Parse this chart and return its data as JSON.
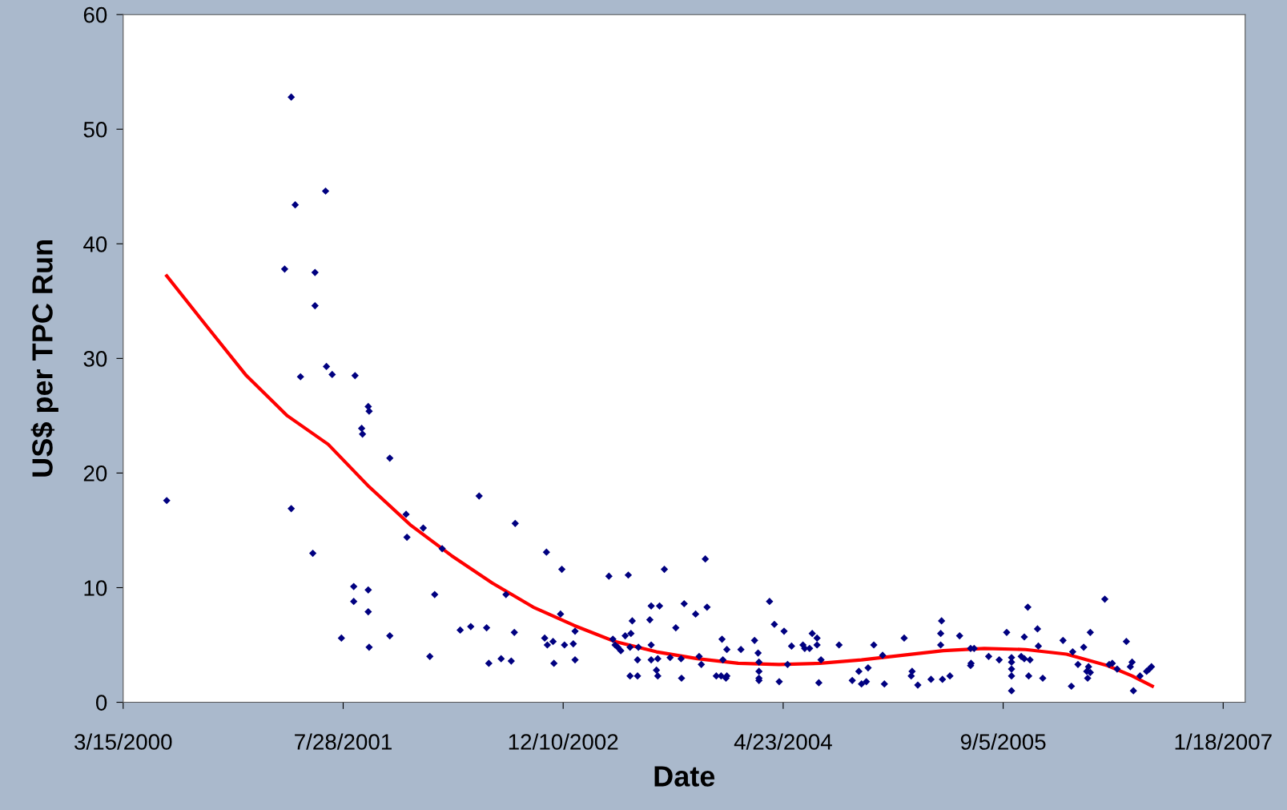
{
  "chart_data": {
    "type": "scatter",
    "xlabel": "Date",
    "ylabel": "US$ per TPC Run",
    "xlim": [
      "2000-03-15",
      "2007-03-09"
    ],
    "ylim": [
      0,
      60
    ],
    "yticks": [
      0,
      10,
      20,
      30,
      40,
      50,
      60
    ],
    "xticks": [
      {
        "value": "2000-03-15",
        "label": "3/15/2000"
      },
      {
        "value": "2001-07-28",
        "label": "7/28/2001"
      },
      {
        "value": "2002-12-10",
        "label": "12/10/2002"
      },
      {
        "value": "2004-04-23",
        "label": "4/23/2004"
      },
      {
        "value": "2005-09-05",
        "label": "9/5/2005"
      },
      {
        "value": "2007-01-18",
        "label": "1/18/2007"
      }
    ],
    "grid": false,
    "legend": false,
    "series": [
      {
        "color": "#000080",
        "marker": "diamond",
        "x": [
          "2000-06-22",
          "2001-04-01",
          "2001-04-10",
          "2001-03-17",
          "2001-05-25",
          "2001-05-25",
          "2001-04-22",
          "2001-04-01",
          "2001-05-20",
          "2001-06-18",
          "2001-06-20",
          "2001-07-03",
          "2001-08-24",
          "2001-09-08",
          "2001-09-10",
          "2001-09-23",
          "2001-09-25",
          "2001-11-11",
          "2001-07-24",
          "2001-08-21",
          "2001-08-21",
          "2001-09-23",
          "2001-09-23",
          "2001-09-25",
          "2001-11-11",
          "2001-12-18",
          "2001-12-20",
          "2002-01-26",
          "2002-02-10",
          "2002-02-21",
          "2002-03-10",
          "2002-04-20",
          "2002-05-14",
          "2002-06-02",
          "2002-06-19",
          "2002-06-24",
          "2002-07-22",
          "2002-08-02",
          "2002-08-14",
          "2002-08-23",
          "2002-08-21",
          "2002-11-02",
          "2002-10-29",
          "2002-11-04",
          "2002-11-17",
          "2002-11-19",
          "2002-12-07",
          "2002-12-04",
          "2002-12-13",
          "2003-01-02",
          "2003-01-06",
          "2003-01-06",
          "2003-03-24",
          "2003-04-02",
          "2003-04-07",
          "2003-04-13",
          "2003-04-20",
          "2003-04-30",
          "2003-05-07",
          "2003-05-11",
          "2003-05-28",
          "2003-05-16",
          "2003-05-13",
          "2003-05-11",
          "2003-05-28",
          "2003-05-30",
          "2003-06-25",
          "2003-06-28",
          "2003-07-17",
          "2003-06-28",
          "2003-06-28",
          "2003-07-10",
          "2003-07-13",
          "2003-07-13",
          "2003-07-28",
          "2003-08-10",
          "2003-08-23",
          "2003-09-04",
          "2003-09-05",
          "2003-09-11",
          "2003-10-07",
          "2003-10-15",
          "2003-10-20",
          "2003-10-29",
          "2003-11-02",
          "2003-11-23",
          "2003-12-04",
          "2003-12-15",
          "2003-12-17",
          "2003-12-06",
          "2003-12-08",
          "2003-12-17",
          "2004-01-18",
          "2004-02-18",
          "2004-02-26",
          "2004-02-28",
          "2004-02-28",
          "2004-02-28",
          "2004-02-28",
          "2004-03-23",
          "2004-04-03",
          "2004-04-14",
          "2004-04-25",
          "2004-05-03",
          "2004-05-12",
          "2004-06-07",
          "2004-06-11",
          "2004-06-22",
          "2004-06-28",
          "2004-07-09",
          "2004-07-09",
          "2004-07-13",
          "2004-07-18",
          "2004-08-28",
          "2004-09-27",
          "2004-10-12",
          "2004-10-18",
          "2004-10-29",
          "2004-11-02",
          "2004-11-15",
          "2004-12-05",
          "2004-12-09",
          "2005-01-23",
          "2005-02-10",
          "2005-02-08",
          "2005-02-23",
          "2005-03-25",
          "2005-04-18",
          "2005-04-16",
          "2005-04-16",
          "2005-04-20",
          "2005-05-07",
          "2005-05-29",
          "2005-06-23",
          "2005-06-23",
          "2005-06-24",
          "2005-07-01",
          "2005-08-03",
          "2005-08-27",
          "2005-09-13",
          "2005-09-24",
          "2005-09-24",
          "2005-09-24",
          "2005-09-24",
          "2005-09-24",
          "2005-10-16",
          "2005-10-23",
          "2005-10-23",
          "2005-10-31",
          "2005-11-02",
          "2005-11-05",
          "2005-11-22",
          "2005-11-24",
          "2005-12-04",
          "2006-01-19",
          "2006-02-07",
          "2006-02-10",
          "2006-02-22",
          "2006-03-07",
          "2006-03-14",
          "2006-03-16",
          "2006-03-18",
          "2006-03-22",
          "2006-03-22",
          "2006-04-24",
          "2006-05-04",
          "2006-05-11",
          "2006-05-22",
          "2006-06-12",
          "2006-06-21",
          "2006-06-25",
          "2006-06-28",
          "2006-07-13",
          "2006-07-28",
          "2006-08-03",
          "2006-08-08"
        ],
        "values": [
          17.6,
          52.8,
          43.4,
          37.8,
          37.5,
          34.6,
          28.4,
          16.9,
          13.0,
          44.6,
          29.3,
          28.6,
          28.5,
          23.9,
          23.4,
          25.8,
          25.4,
          21.3,
          5.6,
          10.1,
          8.8,
          9.8,
          7.9,
          4.8,
          5.8,
          16.4,
          14.4,
          15.2,
          4.0,
          9.4,
          13.4,
          6.3,
          6.6,
          18.0,
          6.5,
          3.4,
          3.8,
          9.4,
          3.6,
          15.6,
          6.1,
          13.1,
          5.6,
          5.0,
          5.3,
          3.4,
          11.6,
          7.7,
          5.0,
          5.1,
          6.2,
          3.7,
          11.0,
          5.5,
          5.0,
          4.8,
          4.5,
          5.8,
          11.1,
          2.3,
          2.3,
          7.1,
          6.0,
          4.8,
          3.7,
          4.8,
          7.2,
          8.4,
          8.4,
          5.0,
          3.7,
          2.8,
          2.3,
          3.8,
          11.6,
          3.9,
          6.5,
          3.8,
          2.1,
          8.6,
          7.7,
          4.0,
          3.3,
          12.5,
          8.3,
          2.3,
          2.3,
          2.1,
          2.3,
          5.5,
          3.7,
          4.6,
          4.6,
          5.4,
          4.3,
          3.5,
          2.1,
          1.9,
          2.7,
          8.8,
          6.8,
          1.8,
          6.2,
          3.3,
          4.9,
          5.0,
          4.7,
          4.7,
          6.0,
          5.6,
          5.0,
          1.7,
          3.7,
          5.0,
          1.9,
          2.7,
          1.6,
          1.8,
          3.0,
          5.0,
          4.1,
          1.6,
          5.6,
          2.7,
          2.3,
          1.5,
          2.0,
          7.1,
          6.0,
          5.0,
          2.0,
          2.3,
          5.8,
          4.7,
          3.2,
          3.4,
          4.7,
          4.0,
          3.7,
          6.1,
          1.0,
          3.9,
          3.5,
          2.9,
          2.3,
          4.0,
          5.7,
          3.8,
          8.3,
          2.3,
          3.7,
          6.4,
          4.9,
          2.1,
          5.4,
          1.4,
          4.4,
          3.3,
          4.8,
          2.7,
          2.1,
          3.1,
          2.6,
          6.1,
          9.0,
          3.3,
          3.4,
          2.9,
          5.3,
          3.1,
          3.5,
          1.0,
          2.3,
          2.7,
          2.9,
          3.1
        ]
      },
      {
        "type": "line",
        "color": "#ff0000",
        "marker": "none",
        "line_style": "solid",
        "x": [
          "2000-06-22",
          "2000-09-17",
          "2000-12-20",
          "2001-03-23",
          "2001-06-24",
          "2001-09-25",
          "2001-12-27",
          "2002-03-31",
          "2002-07-02",
          "2002-10-03",
          "2003-01-04",
          "2003-04-07",
          "2003-07-10",
          "2003-10-11",
          "2004-01-12",
          "2004-04-14",
          "2004-07-16",
          "2004-10-18",
          "2005-01-19",
          "2005-04-22",
          "2005-07-24",
          "2005-10-26",
          "2006-01-27",
          "2006-04-30",
          "2006-06-25",
          "2006-08-10"
        ],
        "values": [
          37.2,
          33.0,
          28.5,
          25.0,
          22.5,
          18.8,
          15.5,
          12.8,
          10.4,
          8.3,
          6.7,
          5.3,
          4.4,
          3.8,
          3.4,
          3.3,
          3.4,
          3.7,
          4.1,
          4.5,
          4.7,
          4.6,
          4.2,
          3.2,
          2.3,
          1.4
        ]
      }
    ]
  }
}
